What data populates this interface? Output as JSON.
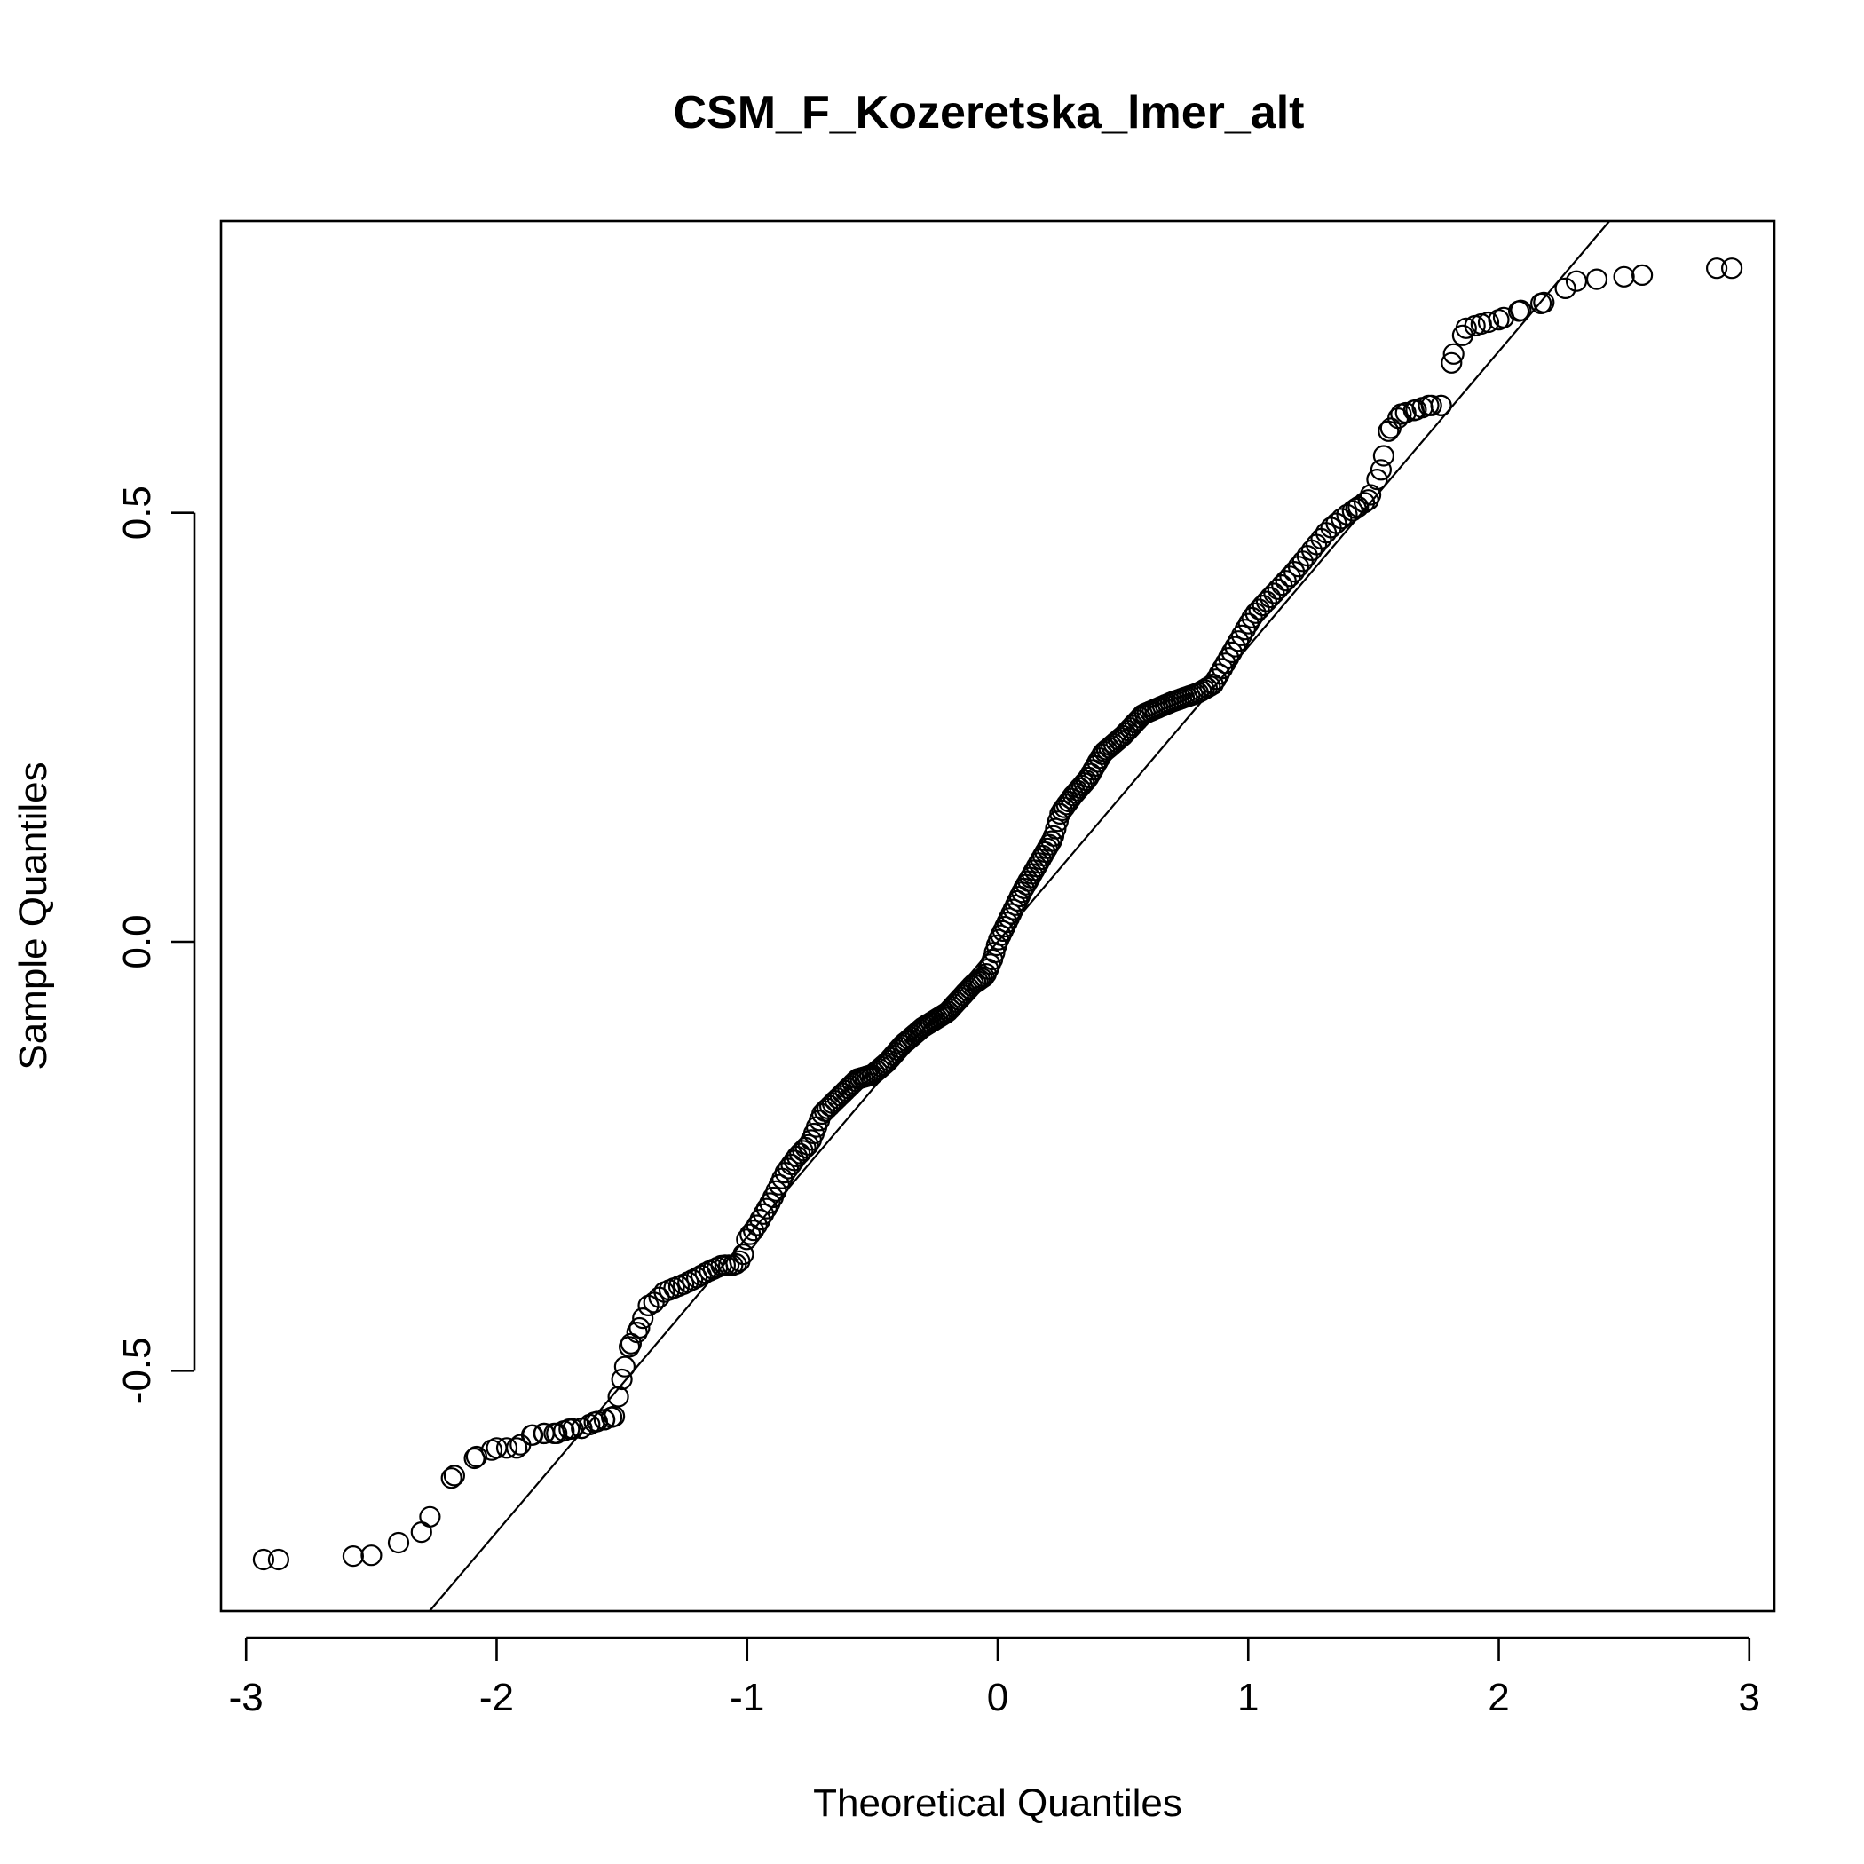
{
  "chart_data": {
    "type": "scatter",
    "title": "CSM_F_Kozeretska_lmer_alt",
    "xlabel": "Theoretical Quantiles",
    "ylabel": "Sample Quantiles",
    "xlim": [
      -3.1,
      3.1
    ],
    "ylim": [
      -0.78,
      0.84
    ],
    "x_ticks": [
      -3,
      -2,
      -1,
      0,
      1,
      2,
      3
    ],
    "x_tick_labels": [
      "-3",
      "-2",
      "-1",
      "0",
      "1",
      "2",
      "3"
    ],
    "y_ticks": [
      -0.5,
      0.0,
      0.5
    ],
    "y_tick_labels": [
      "-0.5",
      "0.0",
      "0.5"
    ],
    "reference_line": {
      "intercept": 0.0,
      "slope": 0.344
    },
    "grid": false,
    "legend": "none",
    "series": [
      {
        "marker": "open-circle",
        "anchors": {
          "x": [
            -2.87,
            -2.5,
            -2.3,
            -2.18,
            -2.08,
            -2.0,
            -1.92,
            -1.86,
            -1.81,
            -1.76,
            -1.71,
            -1.66,
            -1.61,
            -1.57,
            -1.53,
            -1.5,
            -1.47,
            -1.43,
            -1.4,
            -1.37,
            -1.33,
            -1.26,
            -1.21,
            -1.16,
            -1.1,
            -1.05,
            -1.02,
            -1.0,
            -0.97,
            -0.9,
            -0.85,
            -0.8,
            -0.75,
            -0.7,
            -0.63,
            -0.56,
            -0.5,
            -0.44,
            -0.38,
            -0.3,
            -0.2,
            -0.1,
            -0.05,
            -0.02,
            0.0,
            0.05,
            0.1,
            0.18,
            0.22,
            0.25,
            0.3,
            0.36,
            0.42,
            0.5,
            0.58,
            0.7,
            0.8,
            0.86,
            0.9,
            0.94,
            0.98,
            1.02,
            1.1,
            1.18,
            1.25,
            1.32,
            1.38,
            1.43,
            1.48,
            1.53,
            1.56,
            1.61,
            1.67,
            1.72,
            1.77,
            1.82,
            1.87,
            1.93,
            2.0,
            2.08,
            2.18,
            2.31,
            2.5,
            2.87
          ],
          "y": [
            -0.72,
            -0.715,
            -0.688,
            -0.625,
            -0.6,
            -0.59,
            -0.59,
            -0.575,
            -0.573,
            -0.573,
            -0.568,
            -0.567,
            -0.56,
            -0.557,
            -0.553,
            -0.51,
            -0.472,
            -0.45,
            -0.425,
            -0.42,
            -0.408,
            -0.4,
            -0.393,
            -0.385,
            -0.377,
            -0.377,
            -0.37,
            -0.345,
            -0.335,
            -0.3,
            -0.27,
            -0.25,
            -0.235,
            -0.2,
            -0.18,
            -0.16,
            -0.155,
            -0.14,
            -0.12,
            -0.1,
            -0.082,
            -0.05,
            -0.04,
            -0.02,
            0.0,
            0.03,
            0.06,
            0.1,
            0.12,
            0.15,
            0.17,
            0.19,
            0.22,
            0.24,
            0.265,
            0.28,
            0.29,
            0.3,
            0.32,
            0.34,
            0.36,
            0.38,
            0.405,
            0.43,
            0.455,
            0.48,
            0.495,
            0.505,
            0.515,
            0.55,
            0.595,
            0.615,
            0.62,
            0.625,
            0.625,
            0.685,
            0.715,
            0.72,
            0.725,
            0.735,
            0.745,
            0.77,
            0.775,
            0.785
          ]
        },
        "n_points": 300
      }
    ]
  }
}
